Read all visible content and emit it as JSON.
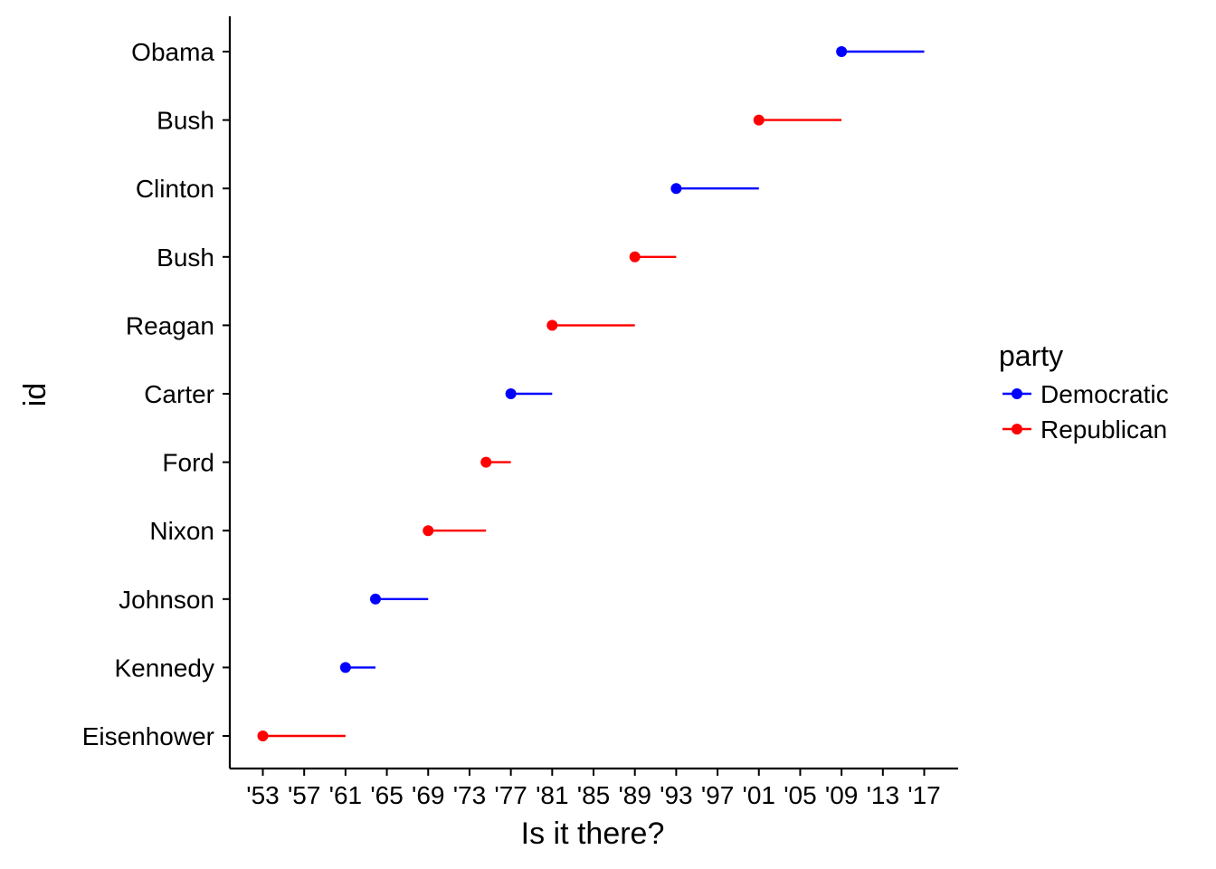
{
  "chart_data": {
    "type": "dumbbell",
    "xlabel": "Is it there?",
    "ylabel": "id",
    "xlim": [
      1949,
      2021
    ],
    "x_ticks": [
      1953,
      1957,
      1961,
      1965,
      1969,
      1973,
      1977,
      1981,
      1985,
      1989,
      1993,
      1997,
      2001,
      2005,
      2009,
      2013,
      2017
    ],
    "x_tick_labels": [
      "'53",
      "'57",
      "'61",
      "'65",
      "'69",
      "'73",
      "'77",
      "'81",
      "'85",
      "'89",
      "'93",
      "'97",
      "'01",
      "'05",
      "'09",
      "'13",
      "'17"
    ],
    "legend": {
      "title": "party",
      "position": "right",
      "items": [
        {
          "label": "Democratic",
          "color": "#0000ff"
        },
        {
          "label": "Republican",
          "color": "#ff0000"
        }
      ]
    },
    "grid": false,
    "categories": [
      "Eisenhower",
      "Kennedy",
      "Johnson",
      "Nixon",
      "Ford",
      "Carter",
      "Reagan",
      "Bush",
      "Clinton",
      "Bush",
      "Obama"
    ],
    "presidents": [
      {
        "name": "Eisenhower",
        "start": 1953,
        "end": 1961,
        "party": "Republican"
      },
      {
        "name": "Kennedy",
        "start": 1961,
        "end": 1963.9,
        "party": "Democratic"
      },
      {
        "name": "Johnson",
        "start": 1963.9,
        "end": 1969,
        "party": "Democratic"
      },
      {
        "name": "Nixon",
        "start": 1969,
        "end": 1974.6,
        "party": "Republican"
      },
      {
        "name": "Ford",
        "start": 1974.6,
        "end": 1977,
        "party": "Republican"
      },
      {
        "name": "Carter",
        "start": 1977,
        "end": 1981,
        "party": "Democratic"
      },
      {
        "name": "Reagan",
        "start": 1981,
        "end": 1989,
        "party": "Republican"
      },
      {
        "name": "Bush",
        "start": 1989,
        "end": 1993,
        "party": "Republican"
      },
      {
        "name": "Clinton",
        "start": 1993,
        "end": 2001,
        "party": "Democratic"
      },
      {
        "name": "Bush",
        "start": 2001,
        "end": 2009,
        "party": "Republican"
      },
      {
        "name": "Obama",
        "start": 2009,
        "end": 2017,
        "party": "Democratic"
      }
    ]
  }
}
